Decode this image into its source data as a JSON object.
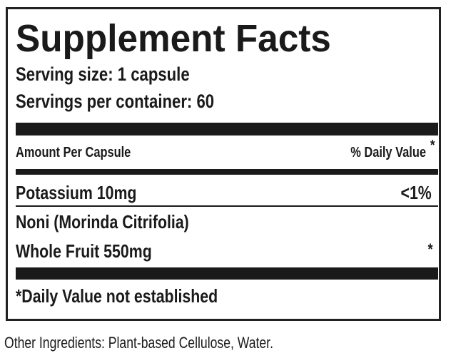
{
  "title": "Supplement Facts",
  "serving_size": "Serving size: 1 capsule",
  "servings_per_container": "Servings per container: 60",
  "header": {
    "amount": "Amount Per Capsule",
    "dv": "% Daily Value",
    "dv_mark": "*"
  },
  "rows": [
    {
      "label": "Potassium  10mg",
      "dv": "<1%"
    },
    {
      "label": "Noni (Morinda Citrifolia)",
      "dv": ""
    },
    {
      "label": "Whole Fruit  550mg",
      "dv": "*"
    }
  ],
  "footnote": "*Daily Value not established",
  "other_ingredients": "Other Ingredients: Plant-based Cellulose, Water."
}
